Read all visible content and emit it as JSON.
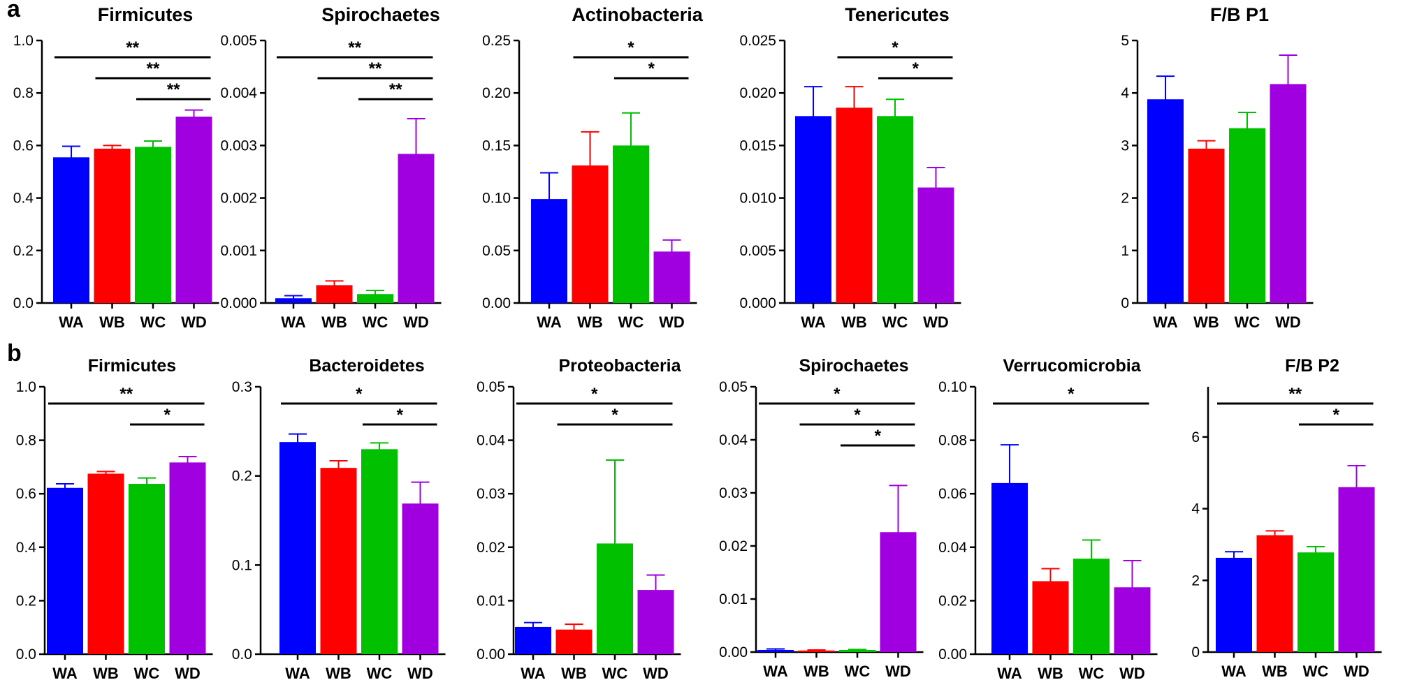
{
  "figure": {
    "panel_labels": [
      "a",
      "b"
    ],
    "colors": {
      "WA": "#0000ff",
      "WB": "#ff0000",
      "WC": "#00c000",
      "WD": "#a000e0"
    }
  },
  "chart_data": [
    {
      "panel": "a",
      "type": "bar",
      "title": "Firmicutes",
      "categories": [
        "WA",
        "WB",
        "WC",
        "WD"
      ],
      "values": [
        0.555,
        0.588,
        0.595,
        0.71
      ],
      "errors": [
        0.042,
        0.012,
        0.022,
        0.025
      ],
      "ylim": [
        0,
        1.0
      ],
      "yticks": [
        "0.0",
        "0.2",
        "0.4",
        "0.6",
        "0.8",
        "1.0"
      ],
      "significance": [
        {
          "from": "WA",
          "to": "WD",
          "label": "**"
        },
        {
          "from": "WB",
          "to": "WD",
          "label": "**"
        },
        {
          "from": "WC",
          "to": "WD",
          "label": "**"
        }
      ]
    },
    {
      "panel": "a",
      "type": "bar",
      "title": "Spirochaetes",
      "categories": [
        "WA",
        "WB",
        "WC",
        "WD"
      ],
      "values": [
        9e-05,
        0.00034,
        0.00017,
        0.00284
      ],
      "errors": [
        5e-05,
        8e-05,
        7e-05,
        0.00067
      ],
      "ylim": [
        0,
        0.005
      ],
      "yticks": [
        "0.000",
        "0.001",
        "0.002",
        "0.003",
        "0.004",
        "0.005"
      ],
      "significance": [
        {
          "from": "WA",
          "to": "WD",
          "label": "**"
        },
        {
          "from": "WB",
          "to": "WD",
          "label": "**"
        },
        {
          "from": "WC",
          "to": "WD",
          "label": "**"
        }
      ]
    },
    {
      "panel": "a",
      "type": "bar",
      "title": "Actinobacteria",
      "categories": [
        "WA",
        "WB",
        "WC",
        "WD"
      ],
      "values": [
        0.099,
        0.131,
        0.15,
        0.049
      ],
      "errors": [
        0.025,
        0.032,
        0.031,
        0.011
      ],
      "ylim": [
        0,
        0.25
      ],
      "yticks": [
        "0.00",
        "0.05",
        "0.10",
        "0.15",
        "0.20",
        "0.25"
      ],
      "significance": [
        {
          "from": "WB",
          "to": "WD",
          "label": "*"
        },
        {
          "from": "WC",
          "to": "WD",
          "label": "*"
        }
      ]
    },
    {
      "panel": "a",
      "type": "bar",
      "title": "Tenericutes",
      "categories": [
        "WA",
        "WB",
        "WC",
        "WD"
      ],
      "values": [
        0.0178,
        0.0186,
        0.0178,
        0.011
      ],
      "errors": [
        0.0028,
        0.002,
        0.0016,
        0.0019
      ],
      "ylim": [
        0,
        0.025
      ],
      "yticks": [
        "0.000",
        "0.005",
        "0.010",
        "0.015",
        "0.020",
        "0.025"
      ],
      "significance": [
        {
          "from": "WB",
          "to": "WD",
          "label": "*"
        },
        {
          "from": "WC",
          "to": "WD",
          "label": "*"
        }
      ]
    },
    {
      "panel": "a",
      "type": "bar",
      "title": "F/B P1",
      "categories": [
        "WA",
        "WB",
        "WC",
        "WD"
      ],
      "values": [
        3.88,
        2.94,
        3.33,
        4.17
      ],
      "errors": [
        0.44,
        0.15,
        0.3,
        0.55
      ],
      "ylim": [
        0,
        5
      ],
      "yticks": [
        "0",
        "1",
        "2",
        "3",
        "4",
        "5"
      ],
      "significance": []
    },
    {
      "panel": "b",
      "type": "bar",
      "title": "Firmicutes",
      "categories": [
        "WA",
        "WB",
        "WC",
        "WD"
      ],
      "values": [
        0.622,
        0.675,
        0.637,
        0.717
      ],
      "errors": [
        0.015,
        0.008,
        0.022,
        0.022
      ],
      "ylim": [
        0,
        1.0
      ],
      "yticks": [
        "0.0",
        "0.2",
        "0.4",
        "0.6",
        "0.8",
        "1.0"
      ],
      "significance": [
        {
          "from": "WA",
          "to": "WD",
          "label": "**"
        },
        {
          "from": "WC",
          "to": "WD",
          "label": "*"
        }
      ]
    },
    {
      "panel": "b",
      "type": "bar",
      "title": "Bacteroidetes",
      "categories": [
        "WA",
        "WB",
        "WC",
        "WD"
      ],
      "values": [
        0.238,
        0.209,
        0.23,
        0.169
      ],
      "errors": [
        0.009,
        0.008,
        0.007,
        0.024
      ],
      "ylim": [
        0,
        0.3
      ],
      "yticks": [
        "0.0",
        "0.1",
        "0.2",
        "0.3"
      ],
      "significance": [
        {
          "from": "WA",
          "to": "WD",
          "label": "*"
        },
        {
          "from": "WC",
          "to": "WD",
          "label": "*"
        }
      ]
    },
    {
      "panel": "b",
      "type": "bar",
      "title": "Proteobacteria",
      "categories": [
        "WA",
        "WB",
        "WC",
        "WD"
      ],
      "values": [
        0.0051,
        0.0046,
        0.0207,
        0.012
      ],
      "errors": [
        0.0008,
        0.001,
        0.0156,
        0.0028
      ],
      "ylim": [
        0,
        0.05
      ],
      "yticks": [
        "0.00",
        "0.01",
        "0.02",
        "0.03",
        "0.04",
        "0.05"
      ],
      "significance": [
        {
          "from": "WA",
          "to": "WD",
          "label": "*"
        },
        {
          "from": "WB",
          "to": "WD",
          "label": "*"
        }
      ]
    },
    {
      "panel": "b",
      "type": "bar",
      "title": "Spirochaetes",
      "categories": [
        "WA",
        "WB",
        "WC",
        "WD"
      ],
      "values": [
        0.0004,
        0.0003,
        0.0004,
        0.0226
      ],
      "errors": [
        0.0002,
        0.0001,
        0.0001,
        0.0088
      ],
      "ylim": [
        0,
        0.05
      ],
      "yticks": [
        "0.00",
        "0.01",
        "0.02",
        "0.03",
        "0.04",
        "0.05"
      ],
      "significance": [
        {
          "from": "WA",
          "to": "WD",
          "label": "*"
        },
        {
          "from": "WB",
          "to": "WD",
          "label": "*"
        },
        {
          "from": "WC",
          "to": "WD",
          "label": "*"
        }
      ]
    },
    {
      "panel": "b",
      "type": "bar",
      "title": "Verrucomicrobia",
      "categories": [
        "WA",
        "WB",
        "WC",
        "WD"
      ],
      "values": [
        0.064,
        0.0273,
        0.0357,
        0.025
      ],
      "errors": [
        0.0143,
        0.0047,
        0.007,
        0.01
      ],
      "ylim": [
        0,
        0.1
      ],
      "yticks": [
        "0.00",
        "0.02",
        "0.04",
        "0.06",
        "0.08",
        "0.10"
      ],
      "significance": [
        {
          "from": "WA",
          "to": "WD",
          "label": "*"
        }
      ]
    },
    {
      "panel": "b",
      "type": "bar",
      "title": "F/B P2",
      "categories": [
        "WA",
        "WB",
        "WC",
        "WD"
      ],
      "values": [
        2.63,
        3.26,
        2.78,
        4.6
      ],
      "errors": [
        0.17,
        0.12,
        0.16,
        0.6
      ],
      "ylim": [
        0,
        7.4
      ],
      "yticks": [
        "0",
        "2",
        "4",
        "6"
      ],
      "yticks_values": [
        0,
        2,
        4,
        6
      ],
      "significance": [
        {
          "from": "WA",
          "to": "WD",
          "label": "**"
        },
        {
          "from": "WC",
          "to": "WD",
          "label": "*"
        }
      ]
    }
  ]
}
